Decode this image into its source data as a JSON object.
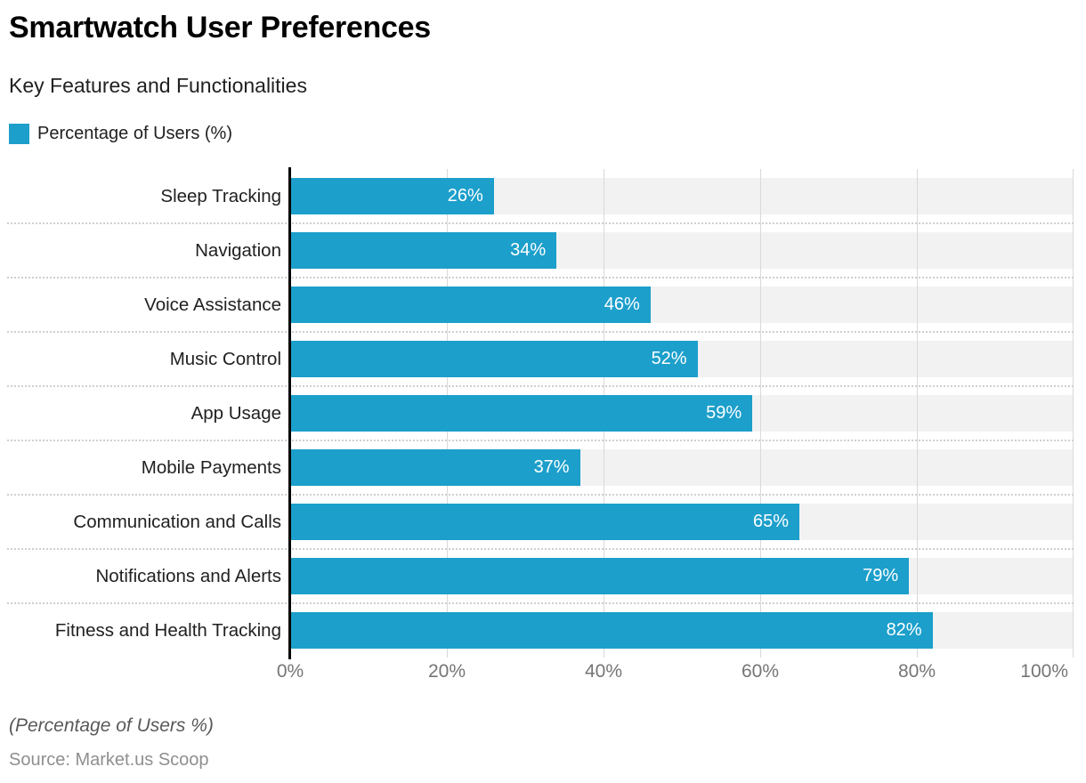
{
  "header": {
    "title": "Smartwatch User Preferences",
    "subtitle": "Key Features and Functionalities"
  },
  "legend": {
    "label": "Percentage of Users (%)",
    "swatch_color": "#1c9fcb"
  },
  "chart_data": {
    "type": "bar",
    "orientation": "horizontal",
    "title": "Smartwatch User Preferences",
    "subtitle": "Key Features and Functionalities",
    "series_name": "Percentage of Users (%)",
    "categories": [
      "Sleep Tracking",
      "Navigation",
      "Voice Assistance",
      "Music Control",
      "App Usage",
      "Mobile Payments",
      "Communication and Calls",
      "Notifications and Alerts",
      "Fitness and Health Tracking"
    ],
    "values": [
      26,
      34,
      46,
      52,
      59,
      37,
      65,
      79,
      82
    ],
    "value_suffix": "%",
    "xlim": [
      0,
      100
    ],
    "x_ticks": [
      0,
      20,
      40,
      60,
      80,
      100
    ],
    "x_tick_labels": [
      "0%",
      "20%",
      "40%",
      "60%",
      "80%",
      "100%"
    ],
    "grid": "vertical",
    "legend_position": "top-left",
    "colors": {
      "bar": "#1c9fcb",
      "track": "#f2f2f2",
      "gridline": "#d9d9d9",
      "separator": "#cfcfcf",
      "axis_line": "#000000",
      "tick_text": "#757575",
      "label_text": "#212121",
      "value_text": "#ffffff"
    }
  },
  "footer": {
    "note": "(Percentage of Users %)",
    "source": "Source: Market.us Scoop"
  }
}
